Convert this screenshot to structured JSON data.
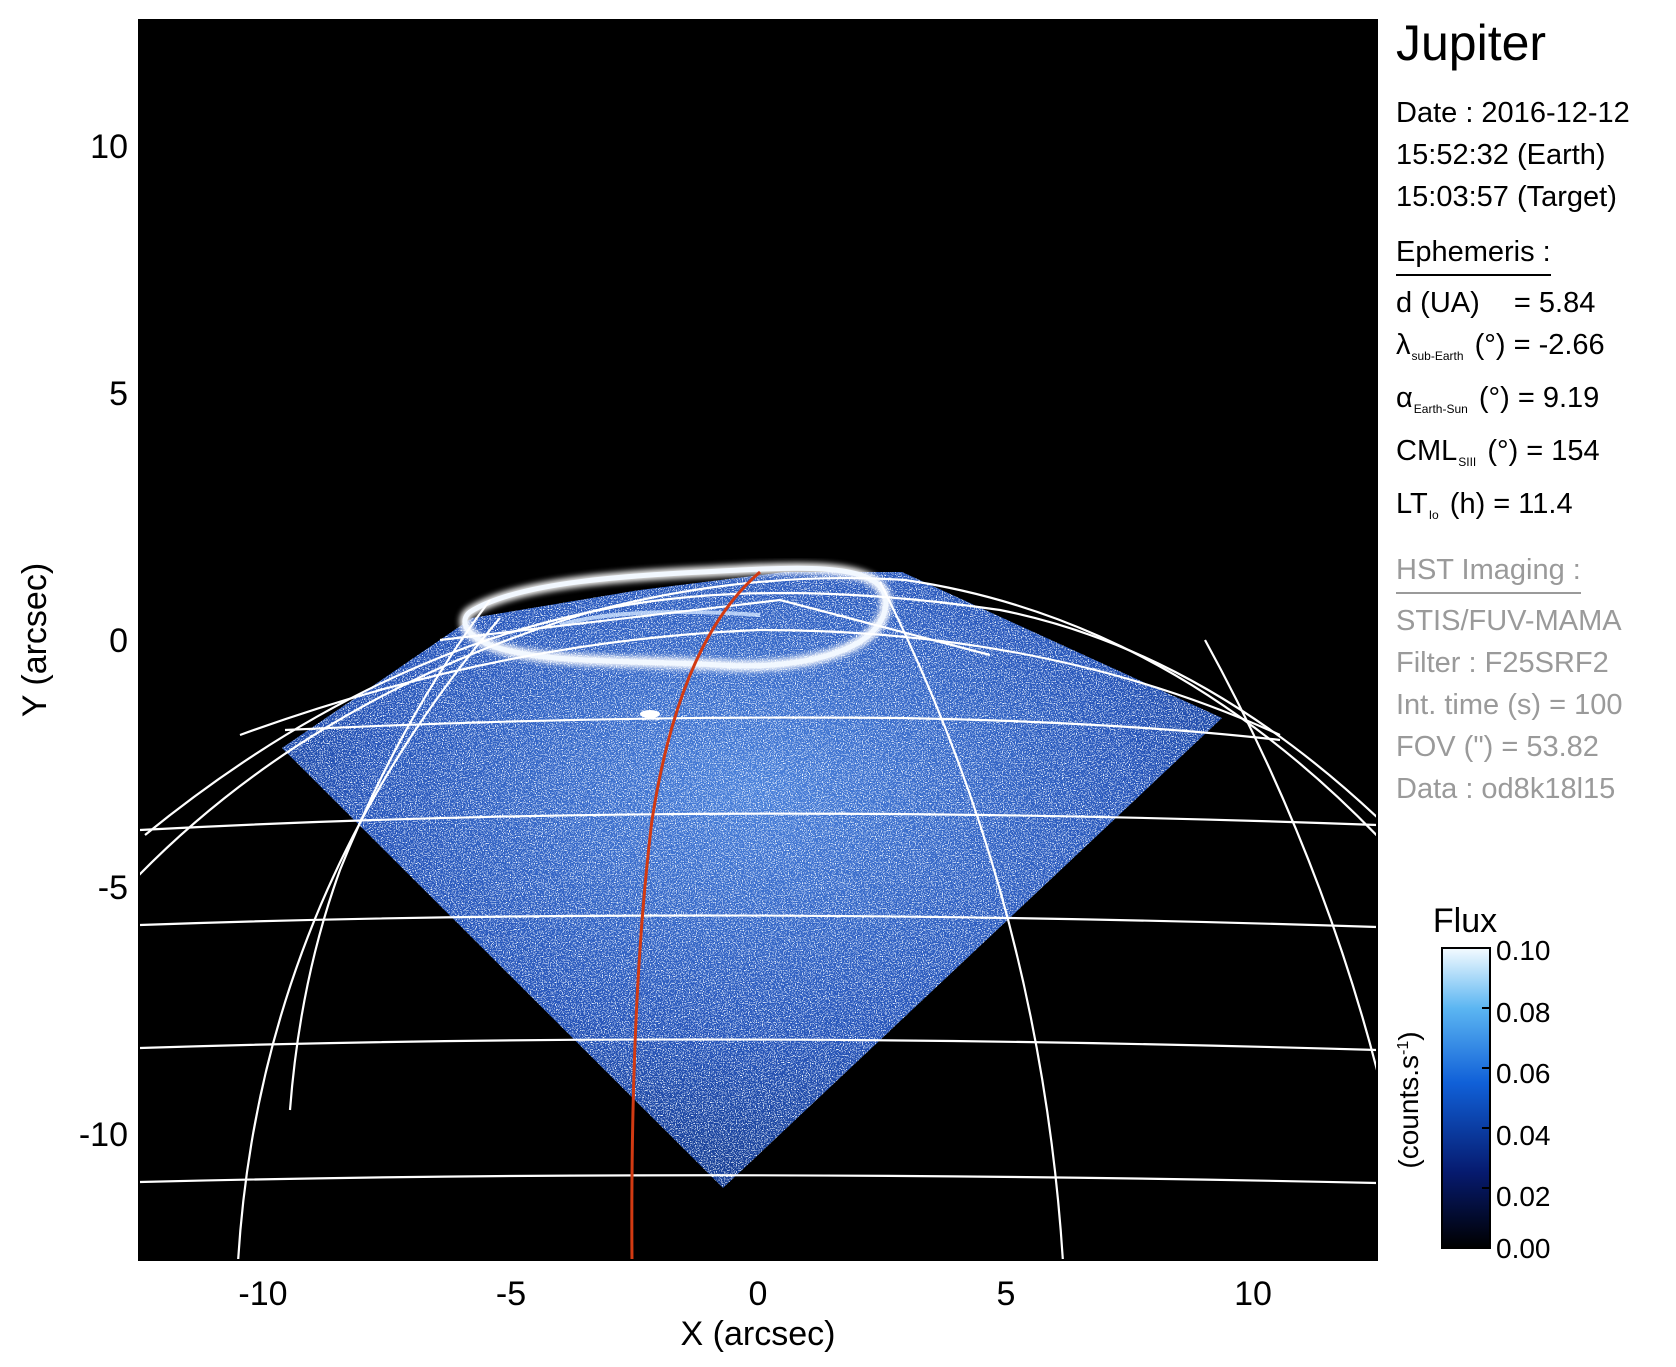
{
  "title": "Jupiter",
  "observation": {
    "date_line": "Date : 2016-12-12",
    "earth_time": "15:52:32 (Earth)",
    "target_time": "15:03:57 (Target)"
  },
  "ephemeris": {
    "heading": "Ephemeris :",
    "distance": {
      "label": "d (UA)",
      "value": "= 5.84"
    },
    "sub_earth_lon": {
      "symbol": "λ",
      "subscript": "sub-Earth",
      "unit": "(°)",
      "value": "= -2.66"
    },
    "phase_angle": {
      "symbol": "α",
      "subscript": "Earth-Sun",
      "unit": "(°)",
      "value": "= 9.19"
    },
    "cml": {
      "symbol": "CML",
      "subscript": "SIII",
      "unit": "(°)",
      "value": "= 154"
    },
    "local_time": {
      "symbol": "LT",
      "subscript": "Io",
      "unit": "(h)",
      "value": "= 11.4"
    }
  },
  "hst_imaging": {
    "heading": "HST Imaging :",
    "instrument": "STIS/FUV-MAMA",
    "filter": "Filter : F25SRF2",
    "int_time": "Int. time (s) = 100",
    "fov": "FOV (\") = 53.82",
    "data_id": "Data : od8k18l15"
  },
  "colorbar": {
    "title": "Flux",
    "label": "(counts.s",
    "label_exp": "-1",
    "label_close": ")",
    "ticks": [
      "0.10",
      "0.08",
      "0.06",
      "0.04",
      "0.02",
      "0.00"
    ]
  },
  "axes": {
    "xlabel": "X (arcsec)",
    "ylabel": "Y (arcsec)",
    "xticks": [
      "-10",
      "-5",
      "0",
      "5",
      "10"
    ],
    "yticks": [
      "10",
      "5",
      "0",
      "-5",
      "-10"
    ]
  },
  "colors": {
    "background": "#000000",
    "grid": "#ffffff",
    "io_footprint_track": "#d23a12",
    "emission_low": "#0a1f8a",
    "emission_high": "#f2f8ff"
  }
}
